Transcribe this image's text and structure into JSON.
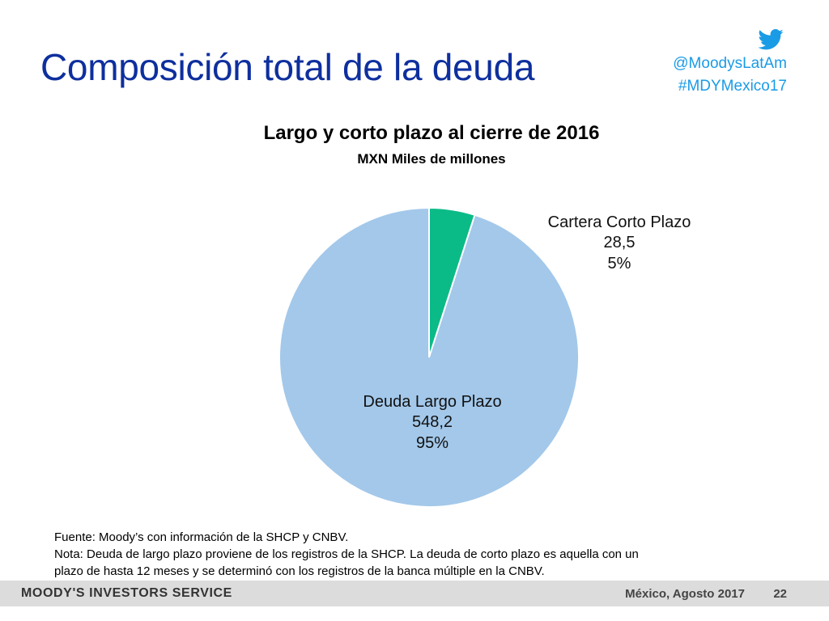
{
  "header": {
    "title": "Composición total de la deuda",
    "twitter_handle": "@MoodysLatAm",
    "hashtag": "#MDYMexico17",
    "icon": "twitter-bird-icon",
    "accent_color": "#1a9be6",
    "title_color": "#0e2f9e"
  },
  "chart_data": {
    "type": "pie",
    "title": "Largo y corto plazo al cierre de 2016",
    "subtitle": "MXN Miles de millones",
    "slices": [
      {
        "name": "Cartera Corto Plazo",
        "value": 28.5,
        "value_label": "28,5",
        "percent": 5,
        "percent_label": "5%",
        "color": "#0bbb87"
      },
      {
        "name": "Deuda Largo Plazo",
        "value": 548.2,
        "value_label": "548,2",
        "percent": 95,
        "percent_label": "95%",
        "color": "#a3c8ea"
      }
    ]
  },
  "notes": {
    "source": "Fuente: Moody’s con información de la SHCP y CNBV.",
    "note_line1": "Nota: Deuda de largo plazo proviene de los registros de la SHCP. La deuda de corto plazo es aquella con un",
    "note_line2": "plazo de hasta 12 meses y se determinó con los registros de la banca múltiple en la CNBV."
  },
  "footer": {
    "brand": "MOODY'S INVESTORS SERVICE",
    "date": "México, Agosto 2017",
    "page_number": "22"
  }
}
